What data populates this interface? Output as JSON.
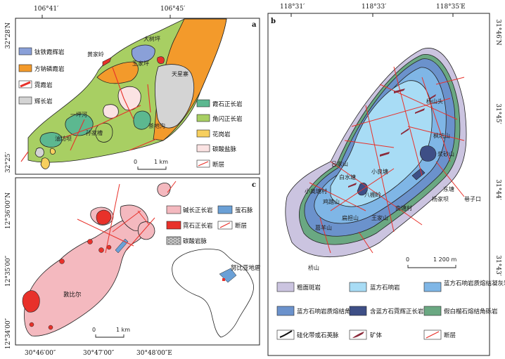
{
  "panel_a": {
    "label": "a",
    "top_lon": [
      "106°41′",
      "106°45′"
    ],
    "left_lat": [
      "32°28′N",
      "32°25′"
    ],
    "places": [
      "黄家岭",
      "大树坪",
      "王家坪",
      "天星寨",
      "一坪河",
      "孙家槽",
      "油坊坝",
      "茶地沟"
    ],
    "legend": [
      "钛铁霞辉岩",
      "方钠磷霞岩",
      "霓霞岩",
      "辉长岩",
      "霞石正长岩",
      "角闪正长岩",
      "花岗岩",
      "碳酸盐脉",
      "断层"
    ],
    "scale_zero": "0",
    "scale_label": "1 km",
    "colors": {
      "ti_ijolite": "#8aa0d8",
      "sodalite": "#f39a2b",
      "ijolite": "#e8312a",
      "gabbro": "#d4d4d4",
      "nepheline_syenite": "#5cb890",
      "hornblende_syenite": "#a8cf63",
      "granite": "#f7cf5e",
      "carbonate": "#fbe3e3",
      "fault": "#e8312a"
    }
  },
  "panel_b": {
    "label": "b",
    "top_lon": [
      "118°31′",
      "118°33′",
      "118°35′E"
    ],
    "right_lat": [
      "31°46′N",
      "31°45′",
      "31°44′",
      "31°43′"
    ],
    "places": [
      "杨山头",
      "枫坑山",
      "浆砂山",
      "小良塘",
      "吕家山",
      "白水塘",
      "小奥塘村",
      "八棚岭",
      "鸡踏山",
      "东塘",
      "杨家坝",
      "巷子口",
      "扁担山",
      "南塘村",
      "葛羊山",
      "王家山",
      "桥山"
    ],
    "legend": [
      "粗面斑岩",
      "蓝方石响岩",
      "蓝方石响岩质熔结凝灰岩",
      "蓝方石响岩质熔结角砾岩",
      "含蓝方石霓辉正长岩",
      "假白榴石熔结角砾岩",
      "硅化带或石英脉",
      "矿体",
      "断层"
    ],
    "scale_zero": "0",
    "scale_label": "1 200 m",
    "colors": {
      "trachyte": "#cbc4e0",
      "phonolite": "#a8dcf5",
      "tuff": "#7fb6e6",
      "breccia": "#6b92cc",
      "syenite": "#3e4f86",
      "pseudoleucite": "#6aa882",
      "fault": "#e8312a"
    }
  },
  "panel_c": {
    "label": "c",
    "left_lat": [
      "12°36′00″N",
      "12°35′00″",
      "12°34′00″"
    ],
    "bottom_lon": [
      "30°46′00″",
      "30°47′00″",
      "30°48′00″E"
    ],
    "place": "敦比尔",
    "legend": [
      "碱长正长岩",
      "萤石脉",
      "霓石正长岩",
      "断层",
      "碳酸岩脉"
    ],
    "inset_label": "努比亚地盾",
    "scale_zero": "0",
    "scale_label": "1 km",
    "colors": {
      "alkali_syenite": "#f4b9bf",
      "aegirine_syenite": "#e8312a",
      "fluorite": "#6ba0d6",
      "fault": "#e8312a"
    }
  }
}
